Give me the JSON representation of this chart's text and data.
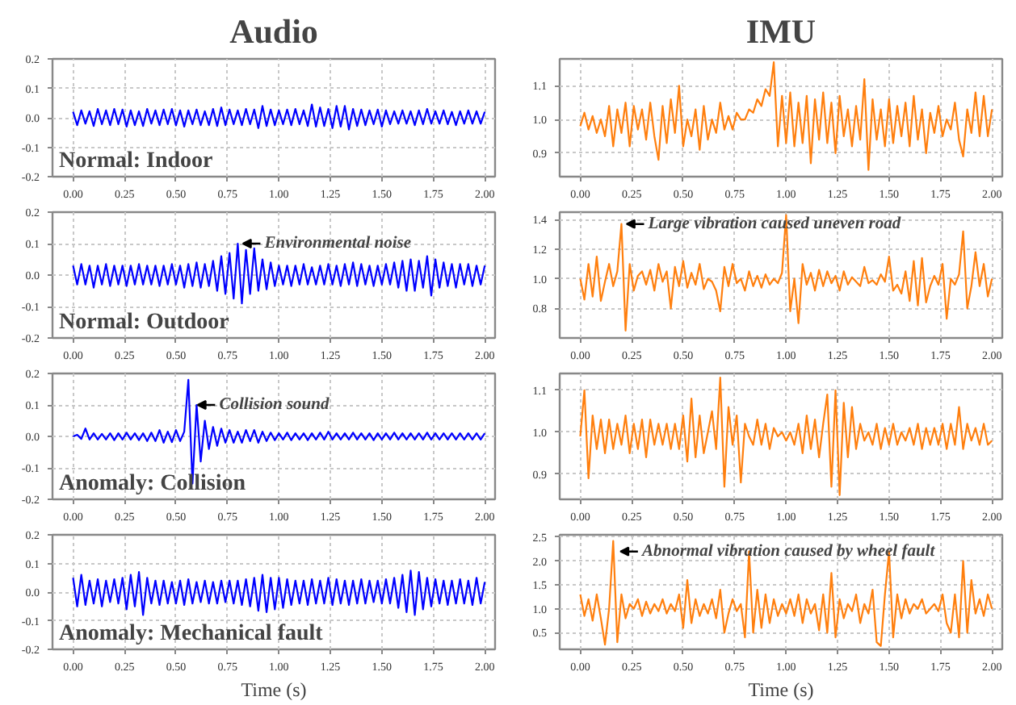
{
  "chart_data": [
    {
      "type": "line",
      "title": "Audio",
      "annotations": [
        "Normal: Indoor"
      ],
      "grid": true,
      "xlim": [
        -0.1,
        2.05
      ],
      "ylim": [
        -0.2,
        0.2
      ],
      "xticks": [
        {
          "value": 0,
          "label": "0.00"
        },
        {
          "value": 0.25,
          "label": "0.25"
        },
        {
          "value": 0.5,
          "label": "0.50"
        },
        {
          "value": 0.75,
          "label": "0.75"
        },
        {
          "value": 1,
          "label": "1.00"
        },
        {
          "value": 1.25,
          "label": "1.25"
        },
        {
          "value": 1.5,
          "label": "1.50"
        },
        {
          "value": 1.75,
          "label": "1.75"
        },
        {
          "value": 2,
          "label": "2.00"
        }
      ],
      "yticks": [
        -0.2,
        -0.1,
        {
          "value": 0,
          "label": "0.0"
        },
        0.1,
        0.2
      ],
      "x": [
        0,
        0.02,
        0.04,
        0.06,
        0.08,
        0.1,
        0.12,
        0.14,
        0.16,
        0.18,
        0.2,
        0.22,
        0.24,
        0.26,
        0.28,
        0.3,
        0.32,
        0.34,
        0.36,
        0.38,
        0.4,
        0.42,
        0.44,
        0.46,
        0.48,
        0.5,
        0.52,
        0.54,
        0.56,
        0.58,
        0.6,
        0.62,
        0.64,
        0.66,
        0.68,
        0.7,
        0.72,
        0.74,
        0.76,
        0.78,
        0.8,
        0.82,
        0.84,
        0.86,
        0.88,
        0.9,
        0.92,
        0.94,
        0.96,
        0.98,
        1.0,
        1.02,
        1.04,
        1.06,
        1.08,
        1.1,
        1.12,
        1.14,
        1.16,
        1.18,
        1.2,
        1.22,
        1.24,
        1.26,
        1.28,
        1.3,
        1.32,
        1.34,
        1.36,
        1.38,
        1.4,
        1.42,
        1.44,
        1.46,
        1.48,
        1.5,
        1.52,
        1.54,
        1.56,
        1.58,
        1.6,
        1.62,
        1.64,
        1.66,
        1.68,
        1.7,
        1.72,
        1.74,
        1.76,
        1.78,
        1.8,
        1.82,
        1.84,
        1.86,
        1.88,
        1.9,
        1.92,
        1.94,
        1.96,
        1.98,
        2.0
      ],
      "series": [
        {
          "color": "#0000ff",
          "values": [
            0.02,
            -0.025,
            0.025,
            -0.02,
            0.022,
            -0.028,
            0.03,
            -0.022,
            0.025,
            -0.025,
            0.03,
            -0.022,
            0.028,
            -0.03,
            0.025,
            -0.025,
            0.022,
            -0.028,
            0.03,
            -0.02,
            0.025,
            -0.025,
            0.028,
            -0.022,
            0.03,
            -0.026,
            0.025,
            -0.03,
            0.025,
            -0.022,
            0.028,
            -0.025,
            0.022,
            -0.025,
            0.03,
            -0.028,
            0.035,
            -0.025,
            0.028,
            -0.022,
            0.025,
            -0.025,
            0.03,
            -0.022,
            0.028,
            -0.035,
            0.04,
            -0.028,
            0.028,
            -0.025,
            0.025,
            -0.022,
            0.028,
            -0.025,
            0.03,
            -0.022,
            0.025,
            -0.028,
            0.045,
            -0.03,
            0.035,
            -0.028,
            0.03,
            -0.035,
            0.04,
            -0.03,
            0.04,
            -0.04,
            0.03,
            -0.028,
            0.028,
            -0.025,
            0.025,
            -0.022,
            0.028,
            -0.03,
            0.025,
            -0.022,
            0.022,
            -0.02,
            0.025,
            -0.02,
            0.022,
            -0.025,
            0.025,
            -0.022,
            0.03,
            -0.02,
            0.022,
            -0.02,
            0.025,
            -0.022,
            0.02,
            -0.025,
            0.022,
            -0.02,
            0.025,
            -0.02,
            0.022,
            -0.02,
            0.02
          ]
        }
      ]
    },
    {
      "type": "line",
      "title": "IMU",
      "grid": true,
      "xlim": [
        -0.1,
        2.05
      ],
      "ylim": [
        0.83,
        1.18
      ],
      "xticks": [
        {
          "value": 0,
          "label": "0.00"
        },
        {
          "value": 0.25,
          "label": "0.25"
        },
        {
          "value": 0.5,
          "label": "0.50"
        },
        {
          "value": 0.75,
          "label": "0.75"
        },
        {
          "value": 1,
          "label": "1.00"
        },
        {
          "value": 1.25,
          "label": "1.25"
        },
        {
          "value": 1.5,
          "label": "1.50"
        },
        {
          "value": 1.75,
          "label": "1.75"
        },
        {
          "value": 2,
          "label": "2.00"
        }
      ],
      "yticks": [
        0.9,
        {
          "value": 1,
          "label": "1.0"
        },
        1.1
      ],
      "x": [
        0,
        0.02,
        0.04,
        0.06,
        0.08,
        0.1,
        0.12,
        0.14,
        0.16,
        0.18,
        0.2,
        0.22,
        0.24,
        0.26,
        0.28,
        0.3,
        0.32,
        0.34,
        0.36,
        0.38,
        0.4,
        0.42,
        0.44,
        0.46,
        0.48,
        0.5,
        0.52,
        0.54,
        0.56,
        0.58,
        0.6,
        0.62,
        0.64,
        0.66,
        0.68,
        0.7,
        0.72,
        0.74,
        0.76,
        0.78,
        0.8,
        0.82,
        0.84,
        0.86,
        0.88,
        0.9,
        0.92,
        0.94,
        0.96,
        0.98,
        1.0,
        1.02,
        1.04,
        1.06,
        1.08,
        1.1,
        1.12,
        1.14,
        1.16,
        1.18,
        1.2,
        1.22,
        1.24,
        1.26,
        1.28,
        1.3,
        1.32,
        1.34,
        1.36,
        1.38,
        1.4,
        1.42,
        1.44,
        1.46,
        1.48,
        1.5,
        1.52,
        1.54,
        1.56,
        1.58,
        1.6,
        1.62,
        1.64,
        1.66,
        1.68,
        1.7,
        1.72,
        1.74,
        1.76,
        1.78,
        1.8,
        1.82,
        1.84,
        1.86,
        1.88,
        1.9,
        1.92,
        1.94,
        1.96,
        1.98,
        2.0
      ],
      "series": [
        {
          "color": "#ff7f0e",
          "values": [
            0.98,
            1.02,
            0.97,
            1.01,
            0.96,
            1.0,
            0.95,
            1.04,
            0.92,
            1.03,
            0.96,
            1.05,
            0.92,
            1.04,
            0.97,
            1.03,
            0.94,
            1.05,
            0.95,
            0.88,
            1.04,
            0.93,
            1.06,
            0.96,
            1.1,
            0.92,
            1.0,
            0.95,
            1.03,
            0.91,
            1.04,
            0.94,
            1.0,
            0.96,
            1.05,
            0.97,
            1.01,
            0.97,
            1.02,
            1.0,
            1.0,
            1.03,
            1.02,
            1.06,
            1.04,
            1.09,
            1.07,
            1.17,
            0.92,
            1.07,
            0.93,
            1.08,
            0.92,
            1.05,
            0.93,
            1.07,
            0.87,
            1.06,
            0.94,
            1.08,
            0.93,
            1.05,
            0.9,
            1.07,
            0.95,
            1.03,
            0.92,
            1.04,
            0.94,
            1.12,
            0.85,
            1.06,
            0.94,
            1.03,
            0.92,
            1.06,
            0.93,
            1.04,
            0.95,
            1.05,
            0.92,
            1.07,
            0.94,
            1.03,
            0.9,
            1.02,
            0.96,
            1.04,
            0.95,
            1.0,
            0.97,
            1.05,
            0.94,
            0.89,
            1.03,
            0.96,
            1.08,
            0.95,
            1.07,
            0.95,
            1.03
          ]
        }
      ]
    },
    {
      "type": "line",
      "annotations": [
        "Normal: Outdoor",
        {
          "text": "Environmental noise",
          "x": 0.8,
          "y": 0.1
        }
      ],
      "grid": true,
      "xlim": [
        -0.1,
        2.05
      ],
      "ylim": [
        -0.2,
        0.2
      ],
      "xticks": [
        {
          "value": 0,
          "label": "0.00"
        },
        {
          "value": 0.25,
          "label": "0.25"
        },
        {
          "value": 0.5,
          "label": "0.50"
        },
        {
          "value": 0.75,
          "label": "0.75"
        },
        {
          "value": 1,
          "label": "1.00"
        },
        {
          "value": 1.25,
          "label": "1.25"
        },
        {
          "value": 1.5,
          "label": "1.50"
        },
        {
          "value": 1.75,
          "label": "1.75"
        },
        {
          "value": 2,
          "label": "2.00"
        }
      ],
      "yticks": [
        -0.2,
        -0.1,
        {
          "value": 0,
          "label": "0.0"
        },
        0.1,
        0.2
      ],
      "x": [
        0,
        0.02,
        0.04,
        0.06,
        0.08,
        0.1,
        0.12,
        0.14,
        0.16,
        0.18,
        0.2,
        0.22,
        0.24,
        0.26,
        0.28,
        0.3,
        0.32,
        0.34,
        0.36,
        0.38,
        0.4,
        0.42,
        0.44,
        0.46,
        0.48,
        0.5,
        0.52,
        0.54,
        0.56,
        0.58,
        0.6,
        0.62,
        0.64,
        0.66,
        0.68,
        0.7,
        0.72,
        0.74,
        0.76,
        0.78,
        0.8,
        0.82,
        0.84,
        0.86,
        0.88,
        0.9,
        0.92,
        0.94,
        0.96,
        0.98,
        1.0,
        1.02,
        1.04,
        1.06,
        1.08,
        1.1,
        1.12,
        1.14,
        1.16,
        1.18,
        1.2,
        1.22,
        1.24,
        1.26,
        1.28,
        1.3,
        1.32,
        1.34,
        1.36,
        1.38,
        1.4,
        1.42,
        1.44,
        1.46,
        1.48,
        1.5,
        1.52,
        1.54,
        1.56,
        1.58,
        1.6,
        1.62,
        1.64,
        1.66,
        1.68,
        1.7,
        1.72,
        1.74,
        1.76,
        1.78,
        1.8,
        1.82,
        1.84,
        1.86,
        1.88,
        1.9,
        1.92,
        1.94,
        1.96,
        1.98,
        2.0
      ],
      "series": [
        {
          "color": "#0000ff",
          "values": [
            0.03,
            -0.03,
            0.035,
            -0.03,
            0.03,
            -0.04,
            0.03,
            -0.03,
            0.035,
            -0.035,
            0.03,
            -0.03,
            0.03,
            -0.035,
            0.03,
            -0.03,
            0.035,
            -0.03,
            0.03,
            -0.03,
            0.03,
            -0.035,
            0.03,
            -0.03,
            0.035,
            -0.03,
            0.03,
            -0.04,
            0.035,
            -0.035,
            0.04,
            -0.04,
            0.035,
            -0.035,
            0.045,
            -0.05,
            0.06,
            -0.06,
            0.07,
            -0.075,
            0.1,
            -0.09,
            0.08,
            -0.06,
            0.085,
            -0.05,
            0.05,
            -0.045,
            0.04,
            -0.035,
            0.03,
            -0.03,
            0.03,
            -0.035,
            0.03,
            -0.03,
            0.035,
            -0.03,
            0.025,
            -0.03,
            0.03,
            -0.03,
            0.035,
            -0.03,
            0.03,
            -0.035,
            0.035,
            -0.03,
            0.04,
            -0.035,
            0.035,
            -0.03,
            0.03,
            -0.035,
            0.03,
            -0.03,
            0.035,
            -0.03,
            0.04,
            -0.04,
            0.045,
            -0.05,
            0.05,
            -0.05,
            0.045,
            -0.04,
            0.06,
            -0.065,
            0.05,
            -0.04,
            0.04,
            -0.035,
            0.035,
            -0.04,
            0.035,
            -0.03,
            0.035,
            -0.035,
            0.03,
            -0.03,
            0.03
          ]
        }
      ]
    },
    {
      "type": "line",
      "annotations": [
        {
          "text": "Large vibration caused uneven road",
          "x": 0.2,
          "y": 1.37
        }
      ],
      "grid": true,
      "xlim": [
        -0.1,
        2.05
      ],
      "ylim": [
        0.6,
        1.45
      ],
      "xticks": [
        {
          "value": 0,
          "label": "0.00"
        },
        {
          "value": 0.25,
          "label": "0.25"
        },
        {
          "value": 0.5,
          "label": "0.50"
        },
        {
          "value": 0.75,
          "label": "0.75"
        },
        {
          "value": 1,
          "label": "1.00"
        },
        {
          "value": 1.25,
          "label": "1.25"
        },
        {
          "value": 1.5,
          "label": "1.50"
        },
        {
          "value": 1.75,
          "label": "1.75"
        },
        {
          "value": 2,
          "label": "2.00"
        }
      ],
      "yticks": [
        0.8,
        {
          "value": 1,
          "label": "1.0"
        },
        1.2,
        1.4
      ],
      "x": [
        0,
        0.02,
        0.04,
        0.06,
        0.08,
        0.1,
        0.12,
        0.14,
        0.16,
        0.18,
        0.2,
        0.22,
        0.24,
        0.26,
        0.28,
        0.3,
        0.32,
        0.34,
        0.36,
        0.38,
        0.4,
        0.42,
        0.44,
        0.46,
        0.48,
        0.5,
        0.52,
        0.54,
        0.56,
        0.58,
        0.6,
        0.62,
        0.64,
        0.66,
        0.68,
        0.7,
        0.72,
        0.74,
        0.76,
        0.78,
        0.8,
        0.82,
        0.84,
        0.86,
        0.88,
        0.9,
        0.92,
        0.94,
        0.96,
        0.98,
        1.0,
        1.02,
        1.04,
        1.06,
        1.08,
        1.1,
        1.12,
        1.14,
        1.16,
        1.18,
        1.2,
        1.22,
        1.24,
        1.26,
        1.28,
        1.3,
        1.32,
        1.34,
        1.36,
        1.38,
        1.4,
        1.42,
        1.44,
        1.46,
        1.48,
        1.5,
        1.52,
        1.54,
        1.56,
        1.58,
        1.6,
        1.62,
        1.64,
        1.66,
        1.68,
        1.7,
        1.72,
        1.74,
        1.76,
        1.78,
        1.8,
        1.82,
        1.84,
        1.86,
        1.88,
        1.9,
        1.92,
        1.94,
        1.96,
        1.98,
        2.0
      ],
      "series": [
        {
          "color": "#ff7f0e",
          "values": [
            1.0,
            0.86,
            1.1,
            0.88,
            1.15,
            0.85,
            0.98,
            1.1,
            0.95,
            1.05,
            1.37,
            0.65,
            1.1,
            0.92,
            1.02,
            1.05,
            0.96,
            1.06,
            0.92,
            1.1,
            0.98,
            1.05,
            0.8,
            1.08,
            0.95,
            1.12,
            0.94,
            1.04,
            0.96,
            1.1,
            0.93,
            1.0,
            0.98,
            0.92,
            0.78,
            1.08,
            0.95,
            1.1,
            0.97,
            1.0,
            0.92,
            1.05,
            0.95,
            1.02,
            0.94,
            1.03,
            0.96,
            1.0,
            0.97,
            1.04,
            1.43,
            0.78,
            1.0,
            0.7,
            1.1,
            0.96,
            1.04,
            0.92,
            1.06,
            0.95,
            1.05,
            0.97,
            1.02,
            0.92,
            1.05,
            0.96,
            1.01,
            0.98,
            0.95,
            1.08,
            0.97,
            0.99,
            0.96,
            1.03,
            0.98,
            1.15,
            0.92,
            0.96,
            0.9,
            1.05,
            0.85,
            1.12,
            0.82,
            1.14,
            0.84,
            0.95,
            1.02,
            0.96,
            1.1,
            0.73,
            1.0,
            0.96,
            1.03,
            1.32,
            0.8,
            0.95,
            1.18,
            0.95,
            1.1,
            0.88,
            1.0
          ]
        }
      ]
    },
    {
      "type": "line",
      "annotations": [
        "Anomaly: Collision",
        {
          "text": "Collision sound",
          "x": 0.58,
          "y": 0.1
        }
      ],
      "grid": true,
      "xlim": [
        -0.1,
        2.05
      ],
      "ylim": [
        -0.2,
        0.2
      ],
      "xticks": [
        {
          "value": 0,
          "label": "0.00"
        },
        {
          "value": 0.25,
          "label": "0.25"
        },
        {
          "value": 0.5,
          "label": "0.50"
        },
        {
          "value": 0.75,
          "label": "0.75"
        },
        {
          "value": 1,
          "label": "1.00"
        },
        {
          "value": 1.25,
          "label": "1.25"
        },
        {
          "value": 1.5,
          "label": "1.50"
        },
        {
          "value": 1.75,
          "label": "1.75"
        },
        {
          "value": 2,
          "label": "2.00"
        }
      ],
      "yticks": [
        -0.2,
        -0.1,
        {
          "value": 0,
          "label": "0.0"
        },
        0.1,
        0.2
      ],
      "x": [
        0,
        0.02,
        0.04,
        0.06,
        0.08,
        0.1,
        0.12,
        0.14,
        0.16,
        0.18,
        0.2,
        0.22,
        0.24,
        0.26,
        0.28,
        0.3,
        0.32,
        0.34,
        0.36,
        0.38,
        0.4,
        0.42,
        0.44,
        0.46,
        0.48,
        0.5,
        0.52,
        0.54,
        0.56,
        0.58,
        0.6,
        0.62,
        0.64,
        0.66,
        0.68,
        0.7,
        0.72,
        0.74,
        0.76,
        0.78,
        0.8,
        0.82,
        0.84,
        0.86,
        0.88,
        0.9,
        0.92,
        0.94,
        0.96,
        0.98,
        1.0,
        1.02,
        1.04,
        1.06,
        1.08,
        1.1,
        1.12,
        1.14,
        1.16,
        1.18,
        1.2,
        1.22,
        1.24,
        1.26,
        1.28,
        1.3,
        1.32,
        1.34,
        1.36,
        1.38,
        1.4,
        1.42,
        1.44,
        1.46,
        1.48,
        1.5,
        1.52,
        1.54,
        1.56,
        1.58,
        1.6,
        1.62,
        1.64,
        1.66,
        1.68,
        1.7,
        1.72,
        1.74,
        1.76,
        1.78,
        1.8,
        1.82,
        1.84,
        1.86,
        1.88,
        1.9,
        1.92,
        1.94,
        1.96,
        1.98,
        2.0
      ],
      "series": [
        {
          "color": "#0000ff",
          "values": [
            0,
            0.005,
            -0.008,
            0.025,
            -0.01,
            0.01,
            -0.01,
            0.008,
            -0.01,
            0.01,
            -0.012,
            0.01,
            -0.01,
            0.012,
            -0.01,
            0.01,
            -0.012,
            0.01,
            -0.015,
            0.012,
            -0.015,
            0.02,
            -0.02,
            0.015,
            -0.018,
            0.02,
            -0.015,
            0.015,
            0.18,
            -0.15,
            0.1,
            -0.08,
            0.05,
            -0.04,
            0.03,
            -0.03,
            0.025,
            -0.02,
            0.02,
            -0.02,
            0.015,
            -0.02,
            0.02,
            -0.015,
            0.02,
            -0.02,
            0.015,
            -0.015,
            0.012,
            -0.012,
            0.01,
            -0.01,
            0.012,
            -0.012,
            0.01,
            -0.01,
            0.01,
            -0.012,
            0.01,
            -0.01,
            0.012,
            -0.01,
            0.015,
            -0.01,
            0.01,
            -0.01,
            0.01,
            -0.01,
            0.012,
            -0.01,
            0.01,
            -0.01,
            0.01,
            -0.012,
            0.01,
            -0.01,
            0.01,
            -0.01,
            0.012,
            -0.01,
            0.01,
            -0.01,
            0.01,
            -0.01,
            0.01,
            -0.01,
            0.012,
            -0.01,
            0.01,
            -0.01,
            0.01,
            -0.01,
            0.01,
            -0.01,
            0.01,
            -0.01,
            0.01,
            -0.01,
            0.01,
            -0.01,
            0.01
          ]
        }
      ]
    },
    {
      "type": "line",
      "grid": true,
      "xlim": [
        -0.1,
        2.05
      ],
      "ylim": [
        0.84,
        1.14
      ],
      "xticks": [
        {
          "value": 0,
          "label": "0.00"
        },
        {
          "value": 0.25,
          "label": "0.25"
        },
        {
          "value": 0.5,
          "label": "0.50"
        },
        {
          "value": 0.75,
          "label": "0.75"
        },
        {
          "value": 1,
          "label": "1.00"
        },
        {
          "value": 1.25,
          "label": "1.25"
        },
        {
          "value": 1.5,
          "label": "1.50"
        },
        {
          "value": 1.75,
          "label": "1.75"
        },
        {
          "value": 2,
          "label": "2.00"
        }
      ],
      "yticks": [
        0.9,
        {
          "value": 1,
          "label": "1.0"
        },
        1.1
      ],
      "x": [
        0,
        0.02,
        0.04,
        0.06,
        0.08,
        0.1,
        0.12,
        0.14,
        0.16,
        0.18,
        0.2,
        0.22,
        0.24,
        0.26,
        0.28,
        0.3,
        0.32,
        0.34,
        0.36,
        0.38,
        0.4,
        0.42,
        0.44,
        0.46,
        0.48,
        0.5,
        0.52,
        0.54,
        0.56,
        0.58,
        0.6,
        0.62,
        0.64,
        0.66,
        0.68,
        0.7,
        0.72,
        0.74,
        0.76,
        0.78,
        0.8,
        0.82,
        0.84,
        0.86,
        0.88,
        0.9,
        0.92,
        0.94,
        0.96,
        0.98,
        1.0,
        1.02,
        1.04,
        1.06,
        1.08,
        1.1,
        1.12,
        1.14,
        1.16,
        1.18,
        1.2,
        1.22,
        1.24,
        1.26,
        1.28,
        1.3,
        1.32,
        1.34,
        1.36,
        1.38,
        1.4,
        1.42,
        1.44,
        1.46,
        1.48,
        1.5,
        1.52,
        1.54,
        1.56,
        1.58,
        1.6,
        1.62,
        1.64,
        1.66,
        1.68,
        1.7,
        1.72,
        1.74,
        1.76,
        1.78,
        1.8,
        1.82,
        1.84,
        1.86,
        1.88,
        1.9,
        1.92,
        1.94,
        1.96,
        1.98,
        2.0
      ],
      "series": [
        {
          "color": "#ff7f0e",
          "values": [
            0.99,
            1.1,
            0.89,
            1.04,
            0.96,
            1.03,
            0.95,
            1.03,
            0.96,
            1.02,
            0.97,
            1.04,
            0.95,
            1.02,
            0.96,
            1.03,
            0.94,
            1.03,
            0.97,
            1.02,
            0.97,
            1.02,
            0.96,
            1.02,
            0.96,
            1.04,
            0.93,
            1.08,
            0.94,
            1.04,
            0.95,
            1.0,
            1.05,
            0.96,
            1.13,
            0.87,
            1.06,
            0.97,
            1.04,
            0.88,
            1.02,
            0.99,
            0.97,
            1.03,
            0.97,
            1.02,
            0.96,
            1.01,
            0.99,
            1.0,
            0.98,
            1.0,
            0.97,
            1.02,
            0.95,
            1.04,
            0.96,
            1.03,
            0.94,
            1.02,
            1.09,
            0.87,
            1.1,
            0.85,
            1.07,
            0.94,
            1.06,
            0.96,
            1.02,
            0.98,
            1.0,
            0.97,
            1.02,
            0.96,
            1.01,
            0.97,
            1.02,
            0.97,
            1.0,
            0.98,
            1.01,
            0.97,
            1.02,
            0.96,
            1.01,
            0.97,
            1.01,
            0.97,
            1.02,
            0.96,
            1.02,
            0.97,
            1.06,
            0.96,
            1.02,
            0.98,
            1.01,
            0.97,
            1.02,
            0.97,
            0.98
          ]
        }
      ]
    },
    {
      "type": "line",
      "xlabel": "Time (s)",
      "annotations": [
        "Anomaly: Mechanical fault"
      ],
      "grid": true,
      "xlim": [
        -0.1,
        2.05
      ],
      "ylim": [
        -0.2,
        0.2
      ],
      "xticks": [
        {
          "value": 0,
          "label": "0.00"
        },
        {
          "value": 0.25,
          "label": "0.25"
        },
        {
          "value": 0.5,
          "label": "0.50"
        },
        {
          "value": 0.75,
          "label": "0.75"
        },
        {
          "value": 1,
          "label": "1.00"
        },
        {
          "value": 1.25,
          "label": "1.25"
        },
        {
          "value": 1.5,
          "label": "1.50"
        },
        {
          "value": 1.75,
          "label": "1.75"
        },
        {
          "value": 2,
          "label": "2.00"
        }
      ],
      "yticks": [
        -0.2,
        -0.1,
        {
          "value": 0,
          "label": "0.0"
        },
        0.1,
        0.2
      ],
      "x": [
        0,
        0.02,
        0.04,
        0.06,
        0.08,
        0.1,
        0.12,
        0.14,
        0.16,
        0.18,
        0.2,
        0.22,
        0.24,
        0.26,
        0.28,
        0.3,
        0.32,
        0.34,
        0.36,
        0.38,
        0.4,
        0.42,
        0.44,
        0.46,
        0.48,
        0.5,
        0.52,
        0.54,
        0.56,
        0.58,
        0.6,
        0.62,
        0.64,
        0.66,
        0.68,
        0.7,
        0.72,
        0.74,
        0.76,
        0.78,
        0.8,
        0.82,
        0.84,
        0.86,
        0.88,
        0.9,
        0.92,
        0.94,
        0.96,
        0.98,
        1.0,
        1.02,
        1.04,
        1.06,
        1.08,
        1.1,
        1.12,
        1.14,
        1.16,
        1.18,
        1.2,
        1.22,
        1.24,
        1.26,
        1.28,
        1.3,
        1.32,
        1.34,
        1.36,
        1.38,
        1.4,
        1.42,
        1.44,
        1.46,
        1.48,
        1.5,
        1.52,
        1.54,
        1.56,
        1.58,
        1.6,
        1.62,
        1.64,
        1.66,
        1.68,
        1.7,
        1.72,
        1.74,
        1.76,
        1.78,
        1.8,
        1.82,
        1.84,
        1.86,
        1.88,
        1.9,
        1.92,
        1.94,
        1.96,
        1.98,
        2.0
      ],
      "series": [
        {
          "color": "#0000ff",
          "values": [
            0.05,
            -0.05,
            0.06,
            -0.045,
            0.04,
            -0.04,
            0.045,
            -0.05,
            0.04,
            -0.035,
            0.045,
            -0.04,
            0.05,
            -0.06,
            0.06,
            -0.05,
            0.07,
            -0.08,
            0.05,
            -0.04,
            0.04,
            -0.045,
            0.04,
            -0.04,
            0.035,
            -0.04,
            0.04,
            -0.045,
            0.045,
            -0.04,
            0.035,
            -0.035,
            0.04,
            -0.04,
            0.035,
            -0.04,
            0.04,
            -0.035,
            0.04,
            -0.04,
            0.04,
            -0.045,
            0.045,
            -0.05,
            0.05,
            -0.065,
            0.06,
            -0.07,
            0.05,
            -0.06,
            0.05,
            -0.055,
            0.045,
            -0.045,
            0.04,
            -0.04,
            0.04,
            -0.045,
            0.045,
            -0.04,
            0.04,
            -0.04,
            0.05,
            -0.045,
            0.045,
            -0.04,
            0.04,
            -0.045,
            0.04,
            -0.04,
            0.045,
            -0.04,
            0.04,
            -0.035,
            0.04,
            -0.04,
            0.045,
            -0.04,
            0.05,
            -0.055,
            0.06,
            -0.07,
            0.075,
            -0.08,
            0.07,
            -0.06,
            0.05,
            -0.05,
            0.045,
            -0.04,
            0.04,
            -0.045,
            0.04,
            -0.04,
            0.045,
            -0.04,
            0.04,
            -0.045,
            0.05,
            -0.04,
            0.035
          ]
        }
      ]
    },
    {
      "type": "line",
      "xlabel": "Time (s)",
      "annotations": [
        {
          "text": "Abnormal vibration caused by wheel fault",
          "x": 0.17,
          "y": 2.2
        }
      ],
      "grid": true,
      "xlim": [
        -0.1,
        2.05
      ],
      "ylim": [
        0.15,
        2.55
      ],
      "xticks": [
        {
          "value": 0,
          "label": "0.00"
        },
        {
          "value": 0.25,
          "label": "0.25"
        },
        {
          "value": 0.5,
          "label": "0.50"
        },
        {
          "value": 0.75,
          "label": "0.75"
        },
        {
          "value": 1,
          "label": "1.00"
        },
        {
          "value": 1.25,
          "label": "1.25"
        },
        {
          "value": 1.5,
          "label": "1.50"
        },
        {
          "value": 1.75,
          "label": "1.75"
        },
        {
          "value": 2,
          "label": "2.00"
        }
      ],
      "yticks": [
        0.5,
        {
          "value": 1,
          "label": "1.0"
        },
        1.5,
        {
          "value": 2,
          "label": "2.0"
        },
        2.5
      ],
      "x": [
        0,
        0.02,
        0.04,
        0.06,
        0.08,
        0.1,
        0.12,
        0.14,
        0.16,
        0.18,
        0.2,
        0.22,
        0.24,
        0.26,
        0.28,
        0.3,
        0.32,
        0.34,
        0.36,
        0.38,
        0.4,
        0.42,
        0.44,
        0.46,
        0.48,
        0.5,
        0.52,
        0.54,
        0.56,
        0.58,
        0.6,
        0.62,
        0.64,
        0.66,
        0.68,
        0.7,
        0.72,
        0.74,
        0.76,
        0.78,
        0.8,
        0.82,
        0.84,
        0.86,
        0.88,
        0.9,
        0.92,
        0.94,
        0.96,
        0.98,
        1.0,
        1.02,
        1.04,
        1.06,
        1.08,
        1.1,
        1.12,
        1.14,
        1.16,
        1.18,
        1.2,
        1.22,
        1.24,
        1.26,
        1.28,
        1.3,
        1.32,
        1.34,
        1.36,
        1.38,
        1.4,
        1.42,
        1.44,
        1.46,
        1.48,
        1.5,
        1.52,
        1.54,
        1.56,
        1.58,
        1.6,
        1.62,
        1.64,
        1.66,
        1.68,
        1.7,
        1.72,
        1.74,
        1.76,
        1.78,
        1.8,
        1.82,
        1.84,
        1.86,
        1.88,
        1.9,
        1.92,
        1.94,
        1.96,
        1.98,
        2.0
      ],
      "series": [
        {
          "color": "#ff7f0e",
          "values": [
            1.3,
            0.85,
            1.2,
            0.75,
            1.3,
            0.8,
            0.25,
            1.0,
            2.42,
            0.3,
            1.3,
            0.8,
            1.1,
            1.0,
            1.2,
            0.85,
            1.15,
            0.9,
            1.1,
            0.95,
            1.2,
            0.9,
            1.1,
            0.95,
            1.3,
            0.6,
            1.6,
            0.7,
            1.2,
            0.85,
            1.1,
            0.9,
            1.2,
            0.8,
            1.4,
            0.5,
            0.9,
            1.2,
            0.95,
            1.1,
            0.4,
            2.2,
            0.5,
            1.4,
            0.6,
            1.3,
            0.7,
            1.2,
            0.85,
            1.1,
            0.9,
            1.2,
            0.85,
            1.3,
            0.7,
            1.2,
            0.9,
            1.1,
            0.55,
            1.3,
            0.5,
            1.75,
            0.4,
            1.2,
            0.8,
            1.1,
            0.95,
            1.3,
            0.7,
            1.1,
            0.9,
            1.4,
            0.3,
            0.22,
            1.3,
            2.2,
            0.4,
            1.3,
            0.8,
            1.2,
            0.9,
            1.1,
            1.0,
            1.2,
            0.9,
            1.0,
            1.1,
            0.95,
            1.3,
            0.7,
            0.5,
            1.3,
            0.4,
            2.0,
            0.5,
            1.6,
            0.9,
            1.2,
            0.85,
            1.3,
            1.0
          ]
        }
      ]
    }
  ]
}
